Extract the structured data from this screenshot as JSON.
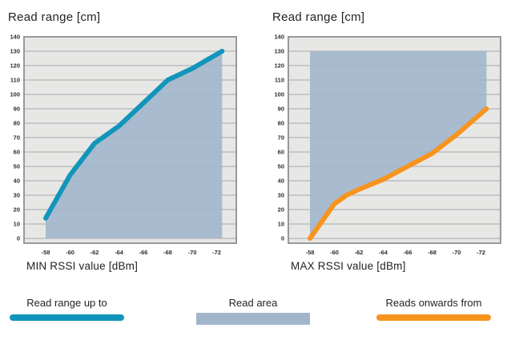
{
  "colors": {
    "plot_bg": "#e7e7e6",
    "grid": "#aaaaaa",
    "border": "#97999c",
    "teal": "#1295ba",
    "orange": "#f7941e",
    "area_fill": "#a2b6cb",
    "text": "#231f20"
  },
  "chart_data": [
    {
      "type": "area",
      "title": "Read range [cm]",
      "xlabel": "MIN RSSI value [dBm]",
      "ylabel": "Read range [cm]",
      "x_ticks": [
        -58,
        -60,
        -62,
        -64,
        -66,
        -68,
        -70,
        -72
      ],
      "ylim": [
        0,
        140
      ],
      "y_tick_step": 10,
      "grid": "horizontal",
      "legend_position": "bottom",
      "series": [
        {
          "name": "Read range up to",
          "color_key": "teal",
          "points": [
            [
              -58,
              14
            ],
            [
              -60,
              44
            ],
            [
              -62,
              66
            ],
            [
              -64,
              78
            ],
            [
              -66,
              94
            ],
            [
              -68,
              110
            ],
            [
              -70,
              118
            ],
            [
              -72.45,
              130
            ]
          ]
        }
      ],
      "area": {
        "name": "Read area",
        "color_key": "area_fill",
        "fill_mode": "below_line",
        "x_start": -58,
        "x_end": -72.45,
        "base": 0
      }
    },
    {
      "type": "area",
      "title": "Read range [cm]",
      "xlabel": "MAX RSSI value [dBm]",
      "ylabel": "Read range [cm]",
      "x_ticks": [
        -58,
        -60,
        -62,
        -64,
        -66,
        -68,
        -70,
        -72
      ],
      "ylim": [
        0,
        140
      ],
      "y_tick_step": 10,
      "grid": "horizontal",
      "legend_position": "bottom",
      "series": [
        {
          "name": "Reads onwards from",
          "color_key": "orange",
          "points": [
            [
              -58,
              0
            ],
            [
              -60,
              24
            ],
            [
              -61,
              30
            ],
            [
              -62,
              34
            ],
            [
              -64,
              41
            ],
            [
              -66,
              50
            ],
            [
              -68,
              59
            ],
            [
              -70,
              72
            ],
            [
              -72.45,
              90
            ]
          ]
        }
      ],
      "area": {
        "name": "Read area",
        "color_key": "area_fill",
        "fill_mode": "above_line",
        "x_start": -58,
        "x_end": -72.45,
        "top": 130
      }
    }
  ],
  "legend": {
    "items": [
      {
        "label": "Read range up to",
        "swatch": "line",
        "color_key": "teal"
      },
      {
        "label": "Read area",
        "swatch": "rect",
        "color_key": "area_fill"
      },
      {
        "label": "Reads onwards from",
        "swatch": "line",
        "color_key": "orange"
      }
    ]
  }
}
